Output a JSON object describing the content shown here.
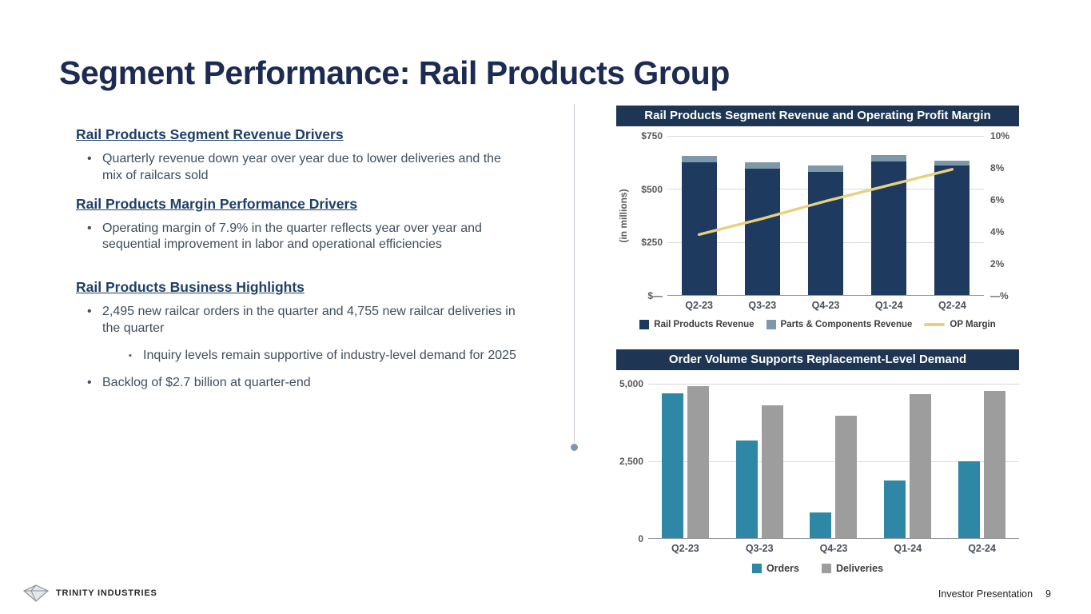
{
  "slide": {
    "title": "Segment Performance: Rail Products Group",
    "footer": {
      "brand": "TRINITY INDUSTRIES",
      "label": "Investor Presentation",
      "page": "9"
    }
  },
  "left": {
    "sections": [
      {
        "heading": "Rail Products Segment Revenue Drivers",
        "bullets": [
          {
            "level": 1,
            "text": "Quarterly revenue down year over year due to lower deliveries and the mix of railcars sold"
          }
        ]
      },
      {
        "heading": "Rail Products Margin Performance Drivers",
        "bullets": [
          {
            "level": 1,
            "text": "Operating margin of 7.9% in the quarter reflects year over year and sequential improvement in labor and operational efficiencies"
          }
        ]
      },
      {
        "heading": "Rail Products Business Highlights",
        "bullets": [
          {
            "level": 1,
            "text": "2,495 new railcar orders in the quarter and 4,755 new railcar deliveries in the quarter"
          },
          {
            "level": 2,
            "text": "Inquiry levels remain supportive of industry-level demand for 2025"
          },
          {
            "level": 1,
            "text": "Backlog of $2.7 billion at quarter-end"
          }
        ]
      }
    ]
  },
  "chart_data": [
    {
      "type": "bar",
      "subtype": "stacked-bar-with-line",
      "title": "Rail Products Segment Revenue and Operating Profit Margin",
      "categories": [
        "Q2-23",
        "Q3-23",
        "Q4-23",
        "Q1-24",
        "Q2-24"
      ],
      "series": [
        {
          "name": "Rail Products Revenue",
          "color": "#1e3a5f",
          "values": [
            625,
            595,
            580,
            630,
            610
          ]
        },
        {
          "name": "Parts & Components Revenue",
          "color": "#7e98a9",
          "values": [
            30,
            30,
            30,
            30,
            25
          ]
        }
      ],
      "line": {
        "name": "OP Margin",
        "color": "#e9d07f",
        "values": [
          3.8,
          4.8,
          5.9,
          6.9,
          7.9
        ]
      },
      "left_axis": {
        "label": "(in millions)",
        "ticks": [
          "$750",
          "$500",
          "$250",
          "$—"
        ],
        "min": 0,
        "max": 750
      },
      "right_axis": {
        "ticks": [
          "10%",
          "8%",
          "6%",
          "4%",
          "2%",
          "—%"
        ],
        "min": 0,
        "max": 10
      },
      "legend_position": "bottom",
      "grid": true
    },
    {
      "type": "bar",
      "subtype": "grouped-bar",
      "title": "Order Volume Supports Replacement-Level Demand",
      "categories": [
        "Q2-23",
        "Q3-23",
        "Q4-23",
        "Q1-24",
        "Q2-24"
      ],
      "series": [
        {
          "name": "Orders",
          "color": "#2d87a5",
          "values": [
            4700,
            3170,
            825,
            1855,
            2495
          ]
        },
        {
          "name": "Deliveries",
          "color": "#9d9d9d",
          "values": [
            4920,
            4305,
            3970,
            4665,
            4755
          ]
        }
      ],
      "left_axis": {
        "ticks": [
          "5,000",
          "2,500",
          "0"
        ],
        "min": 0,
        "max": 5000
      },
      "legend_position": "bottom",
      "grid": true
    }
  ]
}
